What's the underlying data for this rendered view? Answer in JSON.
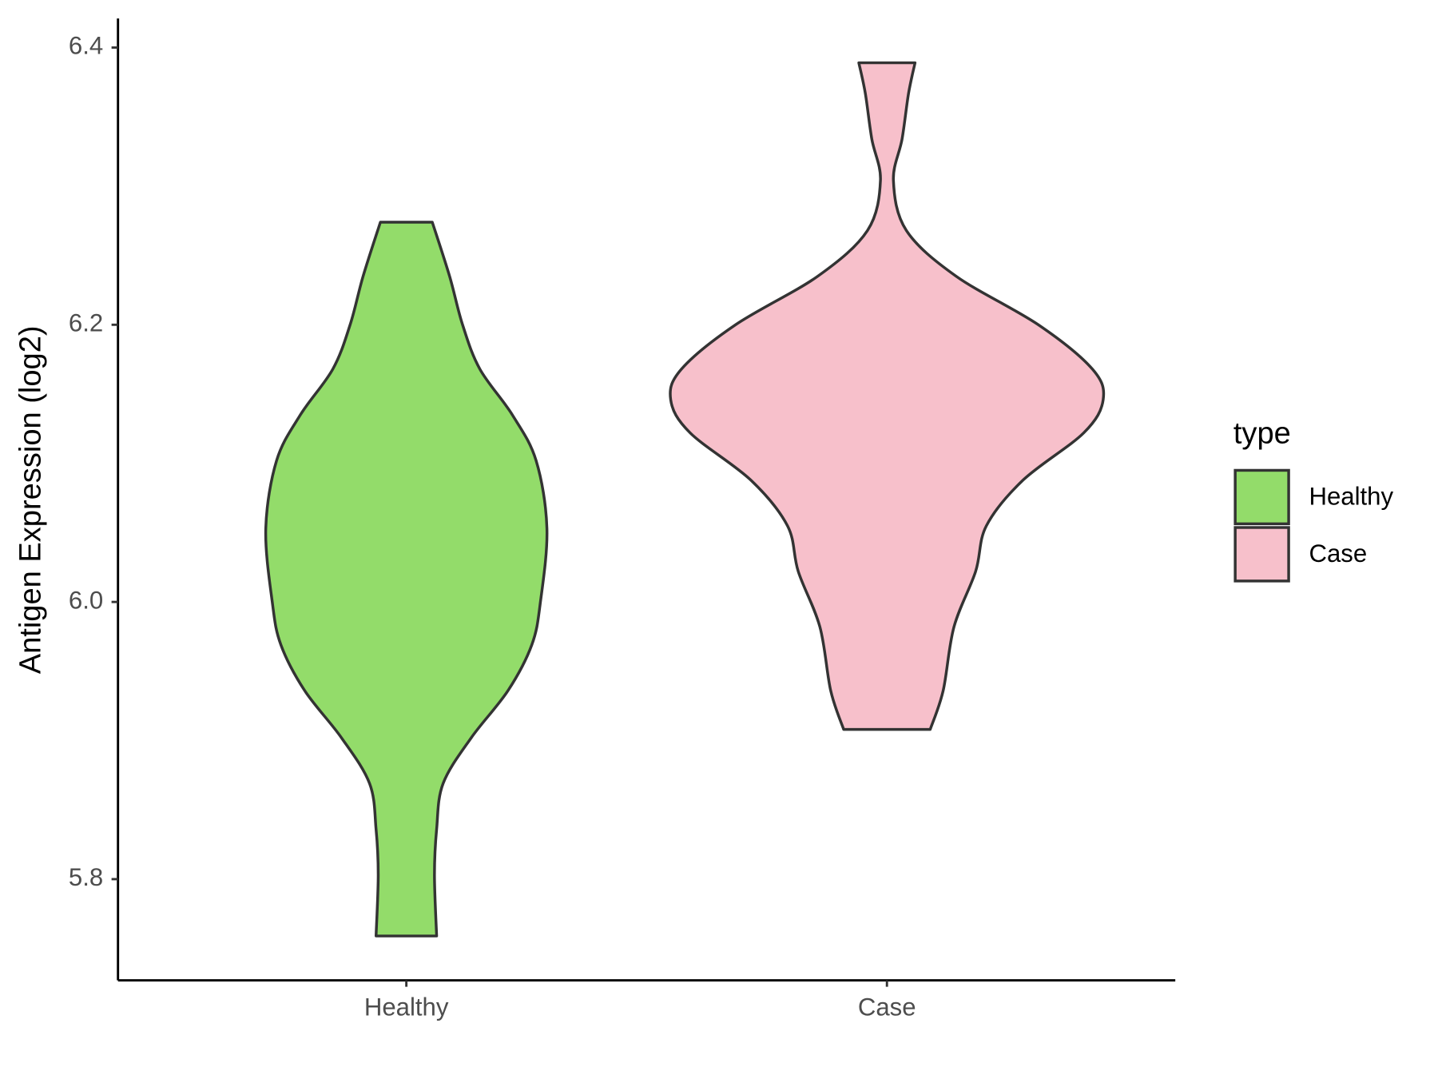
{
  "chart_data": {
    "type": "violin",
    "y_label": "Antigen Expression (log2)",
    "categories": [
      "Healthy",
      "Case"
    ],
    "legend_title": "type",
    "legend_position": "right",
    "ylim": [
      5.727,
      6.421
    ],
    "yticks": [
      5.8,
      {
        "value": 6,
        "label": "6.0"
      },
      6.2,
      6.4
    ],
    "grid": false,
    "series": [
      {
        "name": "Healthy",
        "color": "#93DC6A",
        "y": [
          6.274,
          6.235,
          6.2,
          6.168,
          6.135,
          6.102,
          6.053,
          6.0,
          5.969,
          5.936,
          5.902,
          5.869,
          5.836,
          5.803,
          5.759
        ],
        "density": [
          0.12,
          0.2,
          0.26,
          0.34,
          0.49,
          0.6,
          0.65,
          0.62,
          0.58,
          0.47,
          0.3,
          0.17,
          0.14,
          0.13,
          0.14
        ]
      },
      {
        "name": "Case",
        "color": "#F7C0CB",
        "y": [
          6.389,
          6.367,
          6.334,
          6.304,
          6.268,
          6.235,
          6.2,
          6.168,
          6.146,
          6.122,
          6.088,
          6.055,
          6.022,
          5.982,
          5.936,
          5.908
        ],
        "density": [
          0.13,
          0.1,
          0.07,
          0.03,
          0.09,
          0.32,
          0.7,
          0.95,
          1.0,
          0.91,
          0.63,
          0.46,
          0.41,
          0.31,
          0.26,
          0.2
        ]
      }
    ]
  }
}
